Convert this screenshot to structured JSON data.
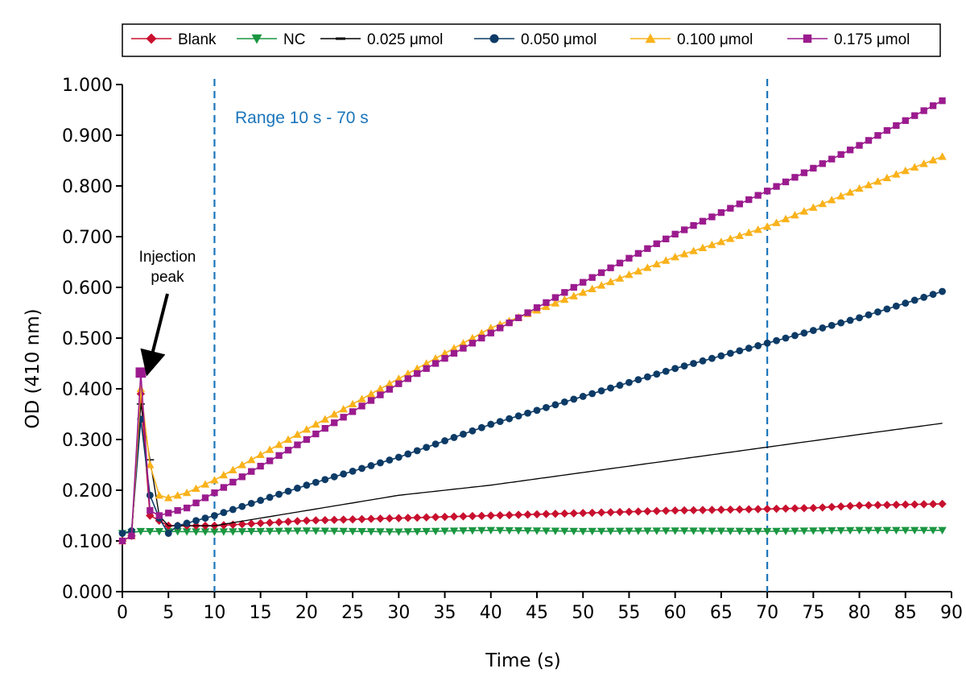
{
  "chart_data": {
    "type": "line",
    "xlabel": "Time (s)",
    "ylabel": "OD (410 nm)",
    "xlim": [
      0,
      90
    ],
    "ylim": [
      0,
      1
    ],
    "x_ticks": [
      "0",
      "5",
      "10",
      "15",
      "20",
      "25",
      "30",
      "35",
      "40",
      "45",
      "50",
      "55",
      "60",
      "65",
      "70",
      "75",
      "80",
      "85",
      "90"
    ],
    "y_ticks": [
      "0.000",
      "0.100",
      "0.200",
      "0.300",
      "0.400",
      "0.500",
      "0.600",
      "0.700",
      "0.800",
      "0.900",
      "1.000"
    ],
    "grid": false,
    "legend_position": "top",
    "series": [
      {
        "name": "Blank",
        "color": "#c8102e",
        "marker": "diamond",
        "points": [
          [
            0,
            0.1
          ],
          [
            1,
            0.11
          ],
          [
            2,
            0.39
          ],
          [
            3,
            0.15
          ],
          [
            4,
            0.14
          ],
          [
            5,
            0.13
          ],
          [
            6,
            0.13
          ],
          [
            10,
            0.13
          ],
          [
            20,
            0.14
          ],
          [
            30,
            0.145
          ],
          [
            40,
            0.15
          ],
          [
            50,
            0.155
          ],
          [
            60,
            0.16
          ],
          [
            70,
            0.163
          ],
          [
            75,
            0.165
          ],
          [
            80,
            0.17
          ],
          [
            89,
            0.173
          ]
        ]
      },
      {
        "name": "NC",
        "color": "#1a9641",
        "marker": "triangle-down",
        "points": [
          [
            0,
            0.115
          ],
          [
            1,
            0.117
          ],
          [
            2,
            0.119
          ],
          [
            10,
            0.118
          ],
          [
            20,
            0.12
          ],
          [
            30,
            0.118
          ],
          [
            40,
            0.121
          ],
          [
            50,
            0.119
          ],
          [
            60,
            0.12
          ],
          [
            70,
            0.119
          ],
          [
            80,
            0.121
          ],
          [
            89,
            0.121
          ]
        ]
      },
      {
        "name": "0.025 μmol",
        "color": "#000000",
        "marker": "line",
        "points": [
          [
            0,
            0.1
          ],
          [
            1,
            0.11
          ],
          [
            2,
            0.37
          ],
          [
            3,
            0.26
          ],
          [
            4,
            0.15
          ],
          [
            5,
            0.13
          ],
          [
            10,
            0.13
          ],
          [
            20,
            0.16
          ],
          [
            30,
            0.19
          ],
          [
            40,
            0.21
          ],
          [
            50,
            0.235
          ],
          [
            60,
            0.26
          ],
          [
            70,
            0.285
          ],
          [
            80,
            0.31
          ],
          [
            89,
            0.332
          ]
        ]
      },
      {
        "name": "0.050 μmol",
        "color": "#0d3b66",
        "marker": "circle",
        "points": [
          [
            0,
            0.115
          ],
          [
            1,
            0.12
          ],
          [
            2,
            0.34
          ],
          [
            3,
            0.19
          ],
          [
            4,
            0.145
          ],
          [
            5,
            0.115
          ],
          [
            6,
            0.13
          ],
          [
            10,
            0.15
          ],
          [
            20,
            0.21
          ],
          [
            30,
            0.265
          ],
          [
            40,
            0.33
          ],
          [
            50,
            0.385
          ],
          [
            60,
            0.44
          ],
          [
            70,
            0.49
          ],
          [
            80,
            0.54
          ],
          [
            89,
            0.592
          ]
        ]
      },
      {
        "name": "0.100 μmol",
        "color": "#f9b21b",
        "marker": "triangle-up",
        "points": [
          [
            0,
            0.1
          ],
          [
            1,
            0.11
          ],
          [
            2,
            0.4
          ],
          [
            3,
            0.25
          ],
          [
            4,
            0.19
          ],
          [
            5,
            0.185
          ],
          [
            7,
            0.195
          ],
          [
            10,
            0.22
          ],
          [
            20,
            0.32
          ],
          [
            30,
            0.42
          ],
          [
            40,
            0.52
          ],
          [
            50,
            0.59
          ],
          [
            60,
            0.66
          ],
          [
            70,
            0.72
          ],
          [
            80,
            0.795
          ],
          [
            89,
            0.858
          ]
        ]
      },
      {
        "name": "0.175 μmol",
        "color": "#9b1b8e",
        "marker": "square",
        "points": [
          [
            0,
            0.1
          ],
          [
            1,
            0.11
          ],
          [
            2,
            0.432
          ],
          [
            3,
            0.16
          ],
          [
            4,
            0.15
          ],
          [
            5,
            0.155
          ],
          [
            7,
            0.165
          ],
          [
            10,
            0.195
          ],
          [
            20,
            0.3
          ],
          [
            30,
            0.41
          ],
          [
            40,
            0.51
          ],
          [
            50,
            0.61
          ],
          [
            60,
            0.705
          ],
          [
            70,
            0.79
          ],
          [
            80,
            0.88
          ],
          [
            89,
            0.968
          ]
        ]
      }
    ],
    "annotations": [
      {
        "text": "Injection",
        "x": 2,
        "y": 0.432
      },
      {
        "text": "peak"
      }
    ],
    "reference_lines": [
      {
        "x": 10,
        "color": "#1b75bb",
        "style": "dashed"
      },
      {
        "x": 70,
        "color": "#1b75bb",
        "style": "dashed"
      }
    ],
    "range_label": "Range 10 s - 70 s"
  }
}
